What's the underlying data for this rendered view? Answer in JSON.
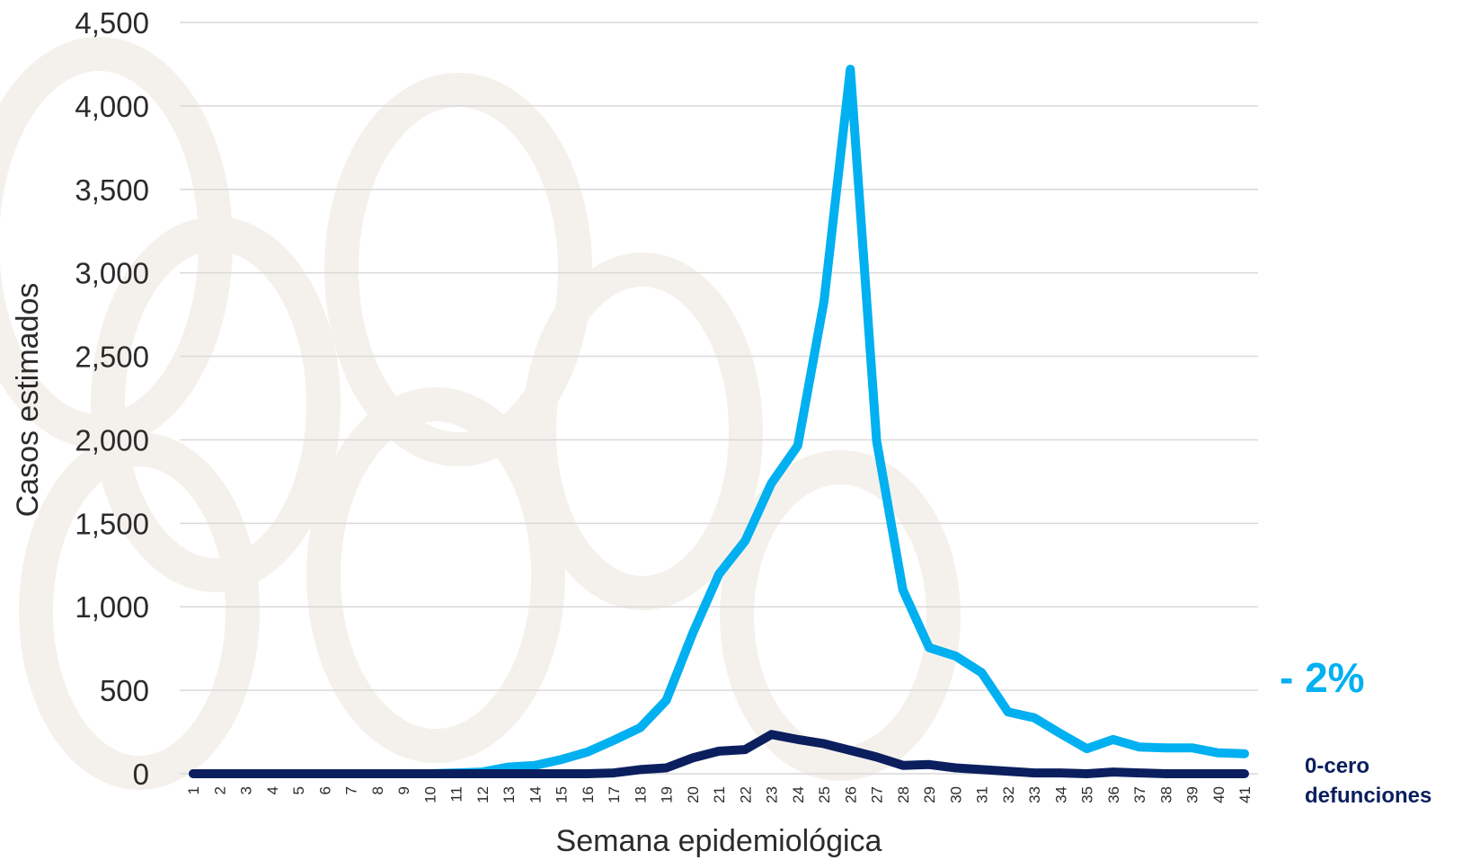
{
  "chart_data": {
    "type": "line",
    "title": "",
    "xlabel": "Semana epidemiológica",
    "ylabel": "Casos estimados",
    "ylim": [
      0,
      4500
    ],
    "yticks": [
      0,
      500,
      1000,
      1500,
      2000,
      2500,
      3000,
      3500,
      4000,
      4500
    ],
    "ytick_labels": [
      "0",
      "500",
      "1,000",
      "1,500",
      "2,000",
      "2,500",
      "3,000",
      "3,500",
      "4,000",
      "4,500"
    ],
    "grid": true,
    "x": [
      "1",
      "2",
      "3",
      "4",
      "5",
      "6",
      "7",
      "8",
      "9",
      "10",
      "11",
      "12",
      "13",
      "14",
      "15",
      "16",
      "17",
      "18",
      "19",
      "20",
      "21",
      "22",
      "23",
      "24",
      "25",
      "26",
      "27",
      "28",
      "29",
      "30",
      "31",
      "32",
      "33",
      "34",
      "35",
      "36",
      "37",
      "38",
      "39",
      "40",
      "41"
    ],
    "series": [
      {
        "color": "#00b0f0",
        "values": [
          0,
          0,
          0,
          0,
          0,
          0,
          0,
          0,
          0,
          0,
          5,
          10,
          40,
          50,
          85,
          130,
          200,
          275,
          440,
          840,
          1195,
          1395,
          1740,
          1965,
          2830,
          4220,
          1995,
          1100,
          755,
          705,
          605,
          370,
          335,
          240,
          150,
          205,
          160,
          155,
          155,
          125,
          120
        ]
      },
      {
        "color": "#0b1f5e",
        "values": [
          0,
          0,
          0,
          0,
          0,
          0,
          0,
          0,
          0,
          0,
          0,
          0,
          0,
          0,
          0,
          0,
          5,
          25,
          35,
          95,
          135,
          145,
          235,
          205,
          180,
          140,
          100,
          50,
          55,
          35,
          25,
          15,
          5,
          5,
          0,
          10,
          5,
          0,
          0,
          0,
          0
        ]
      }
    ],
    "annotations": [
      {
        "text": "- 2%",
        "color": "#00b0f0"
      },
      {
        "line1": "0-cero",
        "line2": "defunciones",
        "color": "#0b1f5e"
      }
    ]
  },
  "colors": {
    "grid": "#d9d9d9",
    "watermark": "#f4f1ec"
  }
}
